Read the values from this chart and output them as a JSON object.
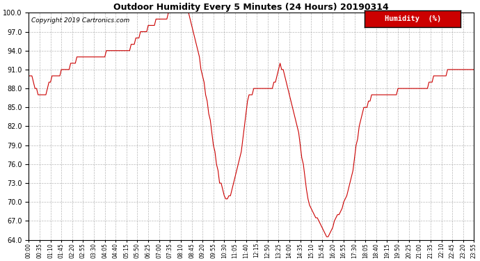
{
  "title": "Outdoor Humidity Every 5 Minutes (24 Hours) 20190314",
  "copyright": "Copyright 2019 Cartronics.com",
  "legend_label": "Humidity  (%)",
  "line_color": "#cc0000",
  "legend_bg": "#cc0000",
  "legend_text_color": "#ffffff",
  "background_color": "#ffffff",
  "grid_color": "#999999",
  "ylim": [
    64.0,
    100.0
  ],
  "yticks": [
    64.0,
    67.0,
    70.0,
    73.0,
    76.0,
    79.0,
    82.0,
    85.0,
    88.0,
    91.0,
    94.0,
    97.0,
    100.0
  ],
  "humidity_values": [
    90,
    90,
    90,
    89,
    88,
    88,
    87,
    87,
    87,
    87,
    87,
    87,
    88,
    89,
    89,
    90,
    90,
    90,
    90,
    90,
    90,
    91,
    91,
    91,
    91,
    91,
    91,
    92,
    92,
    92,
    92,
    93,
    93,
    93,
    93,
    93,
    93,
    93,
    93,
    93,
    93,
    93,
    93,
    93,
    93,
    93,
    93,
    93,
    93,
    93,
    94,
    94,
    94,
    94,
    94,
    94,
    94,
    94,
    94,
    94,
    94,
    94,
    94,
    94,
    94,
    94,
    95,
    95,
    95,
    96,
    96,
    96,
    97,
    97,
    97,
    97,
    97,
    98,
    98,
    98,
    98,
    98,
    99,
    99,
    99,
    99,
    99,
    99,
    99,
    99,
    100,
    100,
    100,
    100,
    100,
    100,
    100,
    100,
    100,
    100,
    100,
    100,
    100,
    100,
    99,
    98,
    97,
    96,
    95,
    94,
    93,
    91,
    90,
    89,
    87,
    86,
    84,
    83,
    81,
    79,
    78,
    76,
    75,
    73,
    73,
    72,
    71,
    70.5,
    70.5,
    71,
    71,
    72,
    73,
    74,
    75,
    76,
    77,
    78,
    80,
    82,
    84,
    86,
    87,
    87,
    87,
    88,
    88,
    88,
    88,
    88,
    88,
    88,
    88,
    88,
    88,
    88,
    88,
    88,
    89,
    89,
    90,
    91,
    92,
    91,
    91,
    90,
    89,
    88,
    87,
    86,
    85,
    84,
    83,
    82,
    81,
    79,
    77,
    76,
    74,
    72,
    70.5,
    69.5,
    69,
    68.5,
    68,
    67.5,
    67.5,
    67,
    66.5,
    66,
    65.5,
    65,
    64.5,
    64.5,
    65,
    65.5,
    66,
    67,
    67.5,
    68,
    68,
    68.5,
    69,
    70,
    70.5,
    71,
    72,
    73,
    74,
    75,
    77,
    79,
    80,
    82,
    83,
    84,
    85,
    85,
    85,
    86,
    86,
    87,
    87,
    87,
    87,
    87,
    87,
    87,
    87,
    87,
    87,
    87,
    87,
    87,
    87,
    87,
    87,
    87,
    88,
    88,
    88,
    88,
    88,
    88,
    88,
    88,
    88,
    88,
    88,
    88,
    88,
    88,
    88,
    88,
    88,
    88,
    88,
    88,
    89,
    89,
    89,
    90,
    90,
    90,
    90,
    90,
    90,
    90,
    90,
    90,
    91,
    91,
    91,
    91,
    91,
    91
  ]
}
